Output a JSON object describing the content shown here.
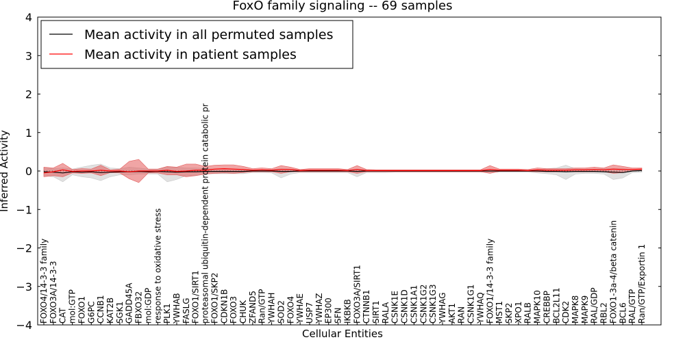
{
  "chart_data": {
    "type": "line",
    "title": "FoxO family signaling -- 69 samples",
    "xlabel": "Cellular Entities",
    "ylabel": "Inferred Activity",
    "ylim": [
      -4,
      4
    ],
    "yticks": [
      "4",
      "3",
      "2",
      "1",
      "0",
      "−1",
      "−2",
      "−3",
      "−4"
    ],
    "ytick_values": [
      4,
      3,
      2,
      1,
      0,
      -1,
      -2,
      -3,
      -4
    ],
    "legend": {
      "location": "upper-left",
      "entries": [
        {
          "label": "Mean activity in all permuted samples",
          "color": "#000000"
        },
        {
          "label": "Mean activity in patient samples",
          "color": "#ff0000"
        }
      ]
    },
    "colors": {
      "permuted_line": "#000000",
      "permuted_band": "#c8c8c8",
      "patient_line": "#ff0000",
      "patient_band": "#e35b5b"
    },
    "categories": [
      "FOXO4/14-3-3 family",
      "FOXO3A/14-3-3",
      "CAT",
      "mol:GTP",
      "FOXO1",
      "G6PC",
      "CCNB1",
      "KAT2B",
      "SGK1",
      "GADD45A",
      "FBXO32",
      "mol:GDP",
      "response to oxidative stress",
      "PLK1",
      "YWHAB",
      "FASLG",
      "FOXO1/SIRT1",
      "proteasomal ubiquitin-dependent protein catabolic pr",
      "FOXO1/SKP2",
      "CDKN1B",
      "FOXO3",
      "CHUK",
      "ZFAND5",
      "Ran/GTP",
      "YWHAH",
      "SOD2",
      "FOXO4",
      "YWHAE",
      "USP7",
      "YWHAZ",
      "EP300",
      "SFN",
      "IKBKB",
      "FOXO3A/SIRT1",
      "CTNNB1",
      "SIRT1",
      "RALA",
      "CSNK1E",
      "CSNK1D",
      "CSNK1A1",
      "CSNK1G2",
      "CSNK1G3",
      "YWHAG",
      "AKT1",
      "RAN",
      "CSNK1G1",
      "YWHAQ",
      "FOXO1/14-3-3 family",
      "MST1",
      "SKP2",
      "XPO1",
      "RALB",
      "MAPK10",
      "CREBBP",
      "BCL2L11",
      "CDK2",
      "MAPK8",
      "MAPK9",
      "RAL/GDP",
      "RBL2",
      "FOXO1-3a-4/beta catenin",
      "BCL6",
      "RAL/GTP",
      "Ran/GTP/Exportin 1"
    ],
    "series": [
      {
        "name": "Mean activity in all permuted samples",
        "values": [
          -0.02,
          -0.03,
          -0.05,
          -0.02,
          -0.03,
          -0.02,
          -0.04,
          -0.03,
          -0.02,
          -0.02,
          -0.01,
          -0.02,
          -0.01,
          -0.02,
          -0.03,
          -0.02,
          -0.02,
          -0.01,
          -0.01,
          -0.01,
          -0.01,
          -0.01,
          0.0,
          0.0,
          0.0,
          -0.01,
          -0.01,
          0.0,
          0.0,
          0.0,
          0.0,
          0.0,
          0.0,
          -0.01,
          0.0,
          0.0,
          0.0,
          0.0,
          0.0,
          0.0,
          0.0,
          0.0,
          0.0,
          0.0,
          0.0,
          0.0,
          0.0,
          0.0,
          0.0,
          0.0,
          0.0,
          0.0,
          0.0,
          -0.01,
          -0.01,
          -0.02,
          -0.01,
          -0.01,
          -0.01,
          -0.02,
          -0.03,
          -0.04,
          0.0,
          0.01
        ],
        "upper": [
          0.08,
          0.06,
          0.08,
          0.05,
          0.1,
          0.15,
          0.18,
          0.08,
          0.06,
          0.1,
          0.08,
          0.05,
          0.05,
          0.1,
          0.1,
          0.08,
          0.08,
          0.06,
          0.05,
          0.06,
          0.05,
          0.05,
          0.03,
          0.03,
          0.04,
          0.06,
          0.05,
          0.03,
          0.03,
          0.03,
          0.03,
          0.03,
          0.03,
          0.05,
          0.03,
          0.02,
          0.02,
          0.02,
          0.02,
          0.02,
          0.02,
          0.02,
          0.02,
          0.02,
          0.02,
          0.02,
          0.02,
          0.02,
          0.02,
          0.02,
          0.02,
          0.02,
          0.04,
          0.06,
          0.08,
          0.15,
          0.06,
          0.05,
          0.05,
          0.06,
          0.06,
          0.06,
          0.03,
          0.03
        ],
        "lower": [
          -0.12,
          -0.15,
          -0.28,
          -0.1,
          -0.15,
          -0.18,
          -0.25,
          -0.15,
          -0.1,
          -0.1,
          -0.08,
          -0.08,
          -0.08,
          -0.28,
          -0.22,
          -0.12,
          -0.12,
          -0.08,
          -0.07,
          -0.07,
          -0.07,
          -0.07,
          -0.04,
          -0.04,
          -0.05,
          -0.18,
          -0.08,
          -0.04,
          -0.04,
          -0.04,
          -0.04,
          -0.04,
          -0.04,
          -0.15,
          -0.04,
          -0.04,
          -0.04,
          -0.03,
          -0.03,
          -0.03,
          -0.03,
          -0.03,
          -0.03,
          -0.03,
          -0.03,
          -0.03,
          -0.03,
          -0.03,
          -0.03,
          -0.03,
          -0.03,
          -0.03,
          -0.05,
          -0.07,
          -0.1,
          -0.22,
          -0.08,
          -0.06,
          -0.06,
          -0.08,
          -0.22,
          -0.18,
          -0.04,
          -0.03
        ]
      },
      {
        "name": "Mean activity in patient samples",
        "values": [
          -0.05,
          -0.02,
          0.03,
          -0.01,
          0.0,
          0.0,
          0.02,
          0.0,
          0.0,
          -0.02,
          0.0,
          0.0,
          0.0,
          0.02,
          -0.01,
          0.0,
          0.02,
          0.02,
          0.05,
          0.06,
          0.05,
          0.04,
          0.02,
          0.03,
          0.02,
          0.04,
          0.04,
          0.01,
          0.02,
          0.02,
          0.02,
          0.02,
          0.01,
          0.04,
          0.01,
          0.01,
          0.01,
          0.01,
          0.01,
          0.01,
          0.01,
          0.01,
          0.01,
          0.01,
          0.01,
          0.01,
          0.01,
          0.04,
          0.02,
          0.02,
          0.02,
          0.01,
          0.03,
          0.02,
          0.02,
          0.02,
          0.03,
          0.03,
          0.04,
          0.03,
          0.05,
          0.04,
          0.04,
          0.05
        ],
        "upper": [
          0.1,
          0.08,
          0.2,
          0.04,
          0.06,
          0.05,
          0.15,
          0.03,
          0.05,
          0.25,
          0.3,
          0.05,
          0.05,
          0.12,
          0.1,
          0.18,
          0.18,
          0.12,
          0.15,
          0.16,
          0.16,
          0.12,
          0.06,
          0.08,
          0.06,
          0.14,
          0.1,
          0.04,
          0.06,
          0.06,
          0.06,
          0.06,
          0.04,
          0.14,
          0.04,
          0.03,
          0.03,
          0.03,
          0.03,
          0.03,
          0.03,
          0.03,
          0.03,
          0.03,
          0.03,
          0.03,
          0.03,
          0.14,
          0.05,
          0.05,
          0.05,
          0.04,
          0.08,
          0.06,
          0.06,
          0.06,
          0.08,
          0.08,
          0.1,
          0.08,
          0.16,
          0.12,
          0.08,
          0.08
        ],
        "lower": [
          -0.15,
          -0.12,
          -0.15,
          -0.05,
          -0.06,
          -0.05,
          -0.12,
          -0.04,
          -0.05,
          -0.2,
          -0.3,
          -0.05,
          -0.05,
          -0.1,
          -0.1,
          -0.15,
          -0.12,
          -0.08,
          -0.06,
          -0.05,
          -0.06,
          -0.04,
          -0.02,
          -0.02,
          -0.02,
          -0.06,
          -0.02,
          -0.02,
          -0.02,
          -0.02,
          -0.02,
          -0.02,
          -0.02,
          -0.06,
          -0.02,
          -0.02,
          -0.02,
          -0.02,
          -0.02,
          -0.02,
          -0.02,
          -0.02,
          -0.02,
          -0.02,
          -0.02,
          -0.02,
          -0.02,
          -0.06,
          -0.01,
          -0.01,
          -0.01,
          -0.01,
          -0.02,
          -0.02,
          -0.02,
          -0.02,
          -0.02,
          -0.02,
          -0.02,
          -0.02,
          -0.06,
          -0.04,
          0.0,
          0.02
        ]
      }
    ]
  }
}
